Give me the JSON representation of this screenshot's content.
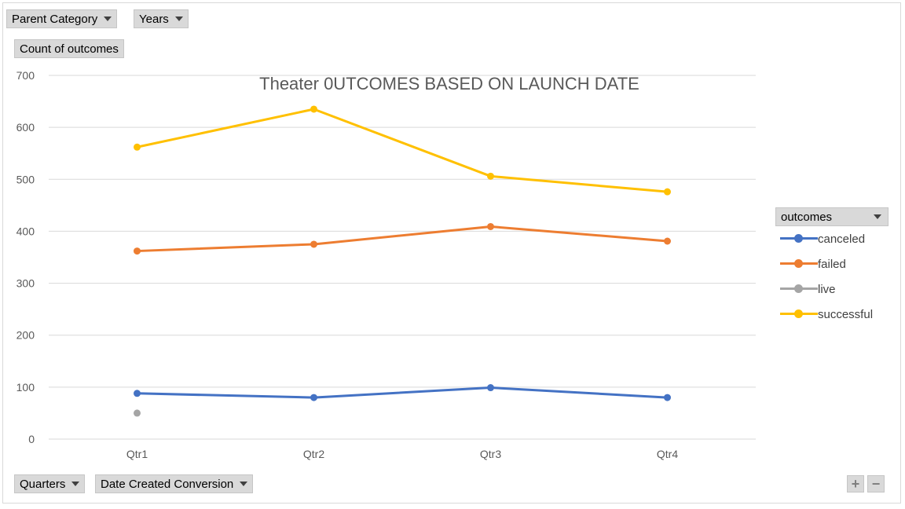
{
  "filters": {
    "parent_category": "Parent Category",
    "years": "Years"
  },
  "value_field": "Count of outcomes",
  "axis_fields": {
    "quarters": "Quarters",
    "date_created": "Date Created Conversion"
  },
  "legend": {
    "header": "outcomes"
  },
  "zoom": {
    "plus": "+",
    "minus": "−"
  },
  "chart_data": {
    "type": "line",
    "title": "Theater 0UTCOMES BASED ON LAUNCH DATE",
    "categories": [
      "Qtr1",
      "Qtr2",
      "Qtr3",
      "Qtr4"
    ],
    "ylim": [
      0,
      700
    ],
    "yticks": [
      0,
      100,
      200,
      300,
      400,
      500,
      600,
      700
    ],
    "grid": true,
    "legend_position": "right",
    "series": [
      {
        "name": "canceled",
        "color": "#4472c4",
        "values": [
          88,
          80,
          99,
          80
        ]
      },
      {
        "name": "failed",
        "color": "#ed7d31",
        "values": [
          362,
          375,
          409,
          381
        ]
      },
      {
        "name": "live",
        "color": "#a5a5a5",
        "values": [
          50,
          null,
          null,
          null
        ]
      },
      {
        "name": "successful",
        "color": "#ffc000",
        "values": [
          562,
          635,
          506,
          476
        ]
      }
    ]
  }
}
